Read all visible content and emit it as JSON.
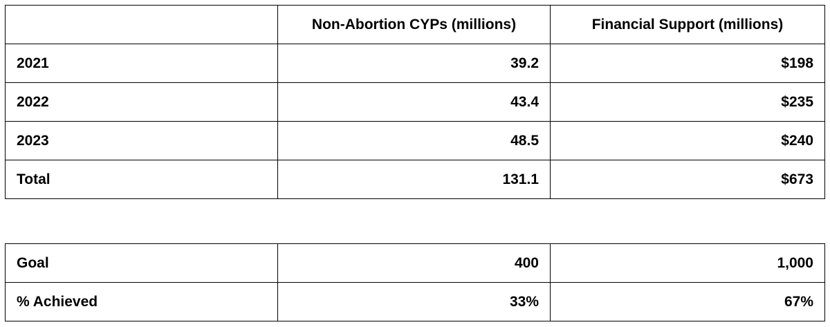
{
  "main_table": {
    "headers": [
      "",
      "Non-Abortion CYPs (millions)",
      "Financial Support (millions)"
    ],
    "rows": [
      {
        "label": "2021",
        "cyps": "39.2",
        "financial": "$198"
      },
      {
        "label": "2022",
        "cyps": "43.4",
        "financial": "$235"
      },
      {
        "label": "2023",
        "cyps": "48.5",
        "financial": "$240"
      },
      {
        "label": "Total",
        "cyps": "131.1",
        "financial": "$673"
      }
    ]
  },
  "goal_table": {
    "rows": [
      {
        "label": "Goal",
        "cyps": "400",
        "financial": "1,000"
      },
      {
        "label": "% Achieved",
        "cyps": "33%",
        "financial": "67%"
      }
    ]
  }
}
